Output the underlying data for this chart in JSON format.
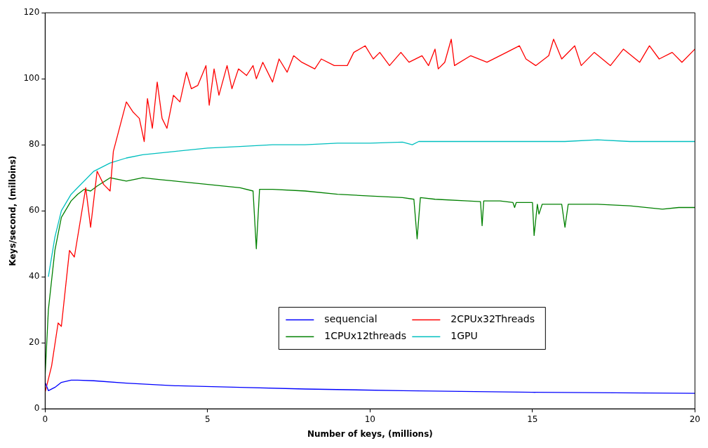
{
  "chart_data": {
    "type": "line",
    "xlabel": "Number of keys, (millions)",
    "ylabel": "Keys/second, (milloins)",
    "xlim": [
      0,
      20
    ],
    "xticks": [
      0,
      5,
      10,
      15,
      20
    ],
    "ylim": [
      0,
      120
    ],
    "yticks": [
      0,
      20,
      40,
      60,
      80,
      100,
      120
    ],
    "grid": false,
    "legend": "bottom",
    "marker": "none",
    "line_style": "solid",
    "series": [
      {
        "name": "sequencial",
        "color": "#0000ff",
        "x": [
          0,
          0.1,
          0.3,
          0.5,
          0.8,
          1.0,
          1.5,
          2.5,
          4,
          6,
          8,
          11,
          15,
          20
        ],
        "values": [
          8,
          5.5,
          6.5,
          8,
          8.7,
          8.7,
          8.5,
          7.8,
          7,
          6.5,
          6,
          5.5,
          5,
          4.7
        ]
      },
      {
        "name": "2CPUx32Threads",
        "color": "#ff0000",
        "x": [
          0,
          0.2,
          0.4,
          0.5,
          0.75,
          0.9,
          1.25,
          1.4,
          1.6,
          1.8,
          2.0,
          2.1,
          2.5,
          2.7,
          2.9,
          3.05,
          3.15,
          3.3,
          3.45,
          3.6,
          3.75,
          3.95,
          4.15,
          4.35,
          4.5,
          4.7,
          4.95,
          5.05,
          5.2,
          5.35,
          5.6,
          5.75,
          5.95,
          6.2,
          6.4,
          6.5,
          6.7,
          7.0,
          7.2,
          7.45,
          7.65,
          7.9,
          8.3,
          8.5,
          8.9,
          9.3,
          9.5,
          9.85,
          10.1,
          10.3,
          10.6,
          10.95,
          11.2,
          11.6,
          11.8,
          12.0,
          12.1,
          12.3,
          12.5,
          12.6,
          13.1,
          13.6,
          14.2,
          14.6,
          14.8,
          15.1,
          15.5,
          15.65,
          15.9,
          16.3,
          16.5,
          16.9,
          17.4,
          17.8,
          18.3,
          18.6,
          18.9,
          19.3,
          19.6,
          20
        ],
        "values": [
          5,
          13,
          26,
          25,
          48,
          46,
          67,
          55,
          72,
          68,
          66,
          78,
          93,
          90,
          88,
          81,
          94,
          85,
          99,
          88,
          85,
          95,
          93,
          102,
          97,
          98,
          104,
          92,
          103,
          95,
          104,
          97,
          103,
          101,
          104,
          100,
          105,
          99,
          106,
          102,
          107,
          105,
          103,
          106,
          104,
          104,
          108,
          110,
          106,
          108,
          104,
          108,
          105,
          107,
          104,
          109,
          103,
          105,
          112,
          104,
          107,
          105,
          108,
          110,
          106,
          104,
          107,
          112,
          106,
          110,
          104,
          108,
          104,
          109,
          105,
          110,
          106,
          108,
          105,
          109
        ]
      },
      {
        "name": "1CPUx12threads",
        "color": "#008000",
        "x": [
          0,
          0.1,
          0.3,
          0.5,
          0.8,
          1.0,
          1.2,
          1.4,
          1.6,
          2.0,
          2.5,
          3,
          3.5,
          4,
          5,
          6,
          6.4,
          6.5,
          6.6,
          7,
          8,
          9,
          10,
          11,
          11.35,
          11.45,
          11.55,
          12,
          13,
          13.4,
          13.45,
          13.5,
          14,
          14.4,
          14.45,
          14.5,
          15,
          15.05,
          15.15,
          15.2,
          15.3,
          15.9,
          16,
          16.1,
          17,
          18,
          19,
          19.5,
          20
        ],
        "values": [
          10,
          30,
          48,
          58,
          63,
          65,
          66.5,
          66,
          67.5,
          70,
          69,
          70,
          69.5,
          69,
          68,
          67,
          66,
          48.5,
          66.5,
          66.5,
          66,
          65,
          64.5,
          64,
          63.5,
          51.5,
          64,
          63.5,
          63,
          62.8,
          55.5,
          63,
          63,
          62.5,
          61,
          62.5,
          62.5,
          52.5,
          62,
          59,
          62,
          62,
          55,
          62,
          62,
          61.5,
          60.5,
          61,
          61
        ]
      },
      {
        "name": "1GPU",
        "color": "#00bfbf",
        "x": [
          0.1,
          0.3,
          0.5,
          0.8,
          1.0,
          1.5,
          2,
          2.5,
          3,
          4,
          5,
          6,
          7,
          8,
          9,
          10,
          11,
          11.3,
          11.5,
          12,
          13,
          14,
          15,
          16,
          17,
          18,
          19,
          20
        ],
        "values": [
          40,
          52,
          60,
          65,
          67,
          72,
          74.5,
          76,
          77,
          78,
          79,
          79.5,
          80,
          80,
          80.5,
          80.5,
          80.8,
          80,
          81,
          81,
          81,
          81,
          81,
          81,
          81.5,
          81,
          81,
          81
        ]
      }
    ]
  }
}
